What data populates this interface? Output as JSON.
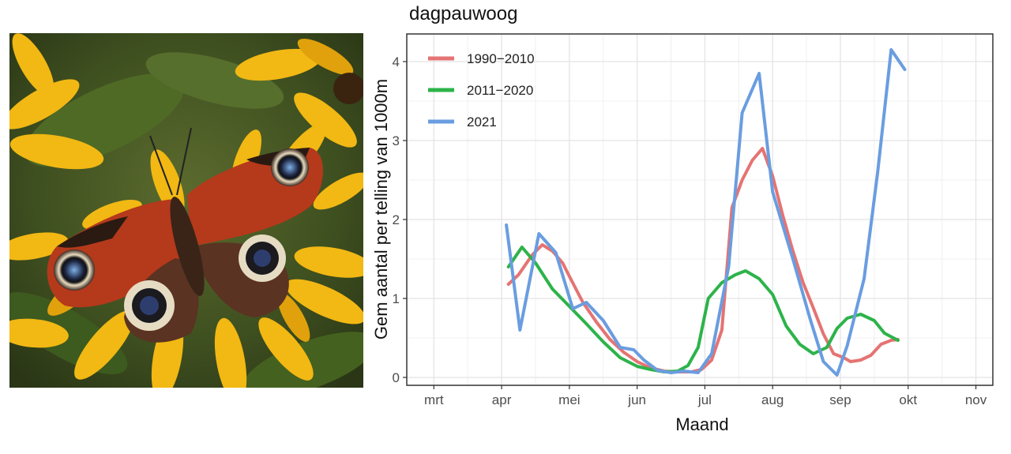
{
  "photo": {
    "icon": "peacock-butterfly-on-yellow-flowers"
  },
  "chart_data": {
    "type": "line",
    "title": "dagpauwoog",
    "xlabel": "Maand",
    "ylabel": "Gem aantal per telling van 1000m",
    "x_ticks": [
      {
        "label": "mrt",
        "value": 3
      },
      {
        "label": "apr",
        "value": 4
      },
      {
        "label": "mei",
        "value": 5
      },
      {
        "label": "jun",
        "value": 6
      },
      {
        "label": "jul",
        "value": 7
      },
      {
        "label": "aug",
        "value": 8
      },
      {
        "label": "sep",
        "value": 9
      },
      {
        "label": "okt",
        "value": 10
      },
      {
        "label": "nov",
        "value": 11
      }
    ],
    "y_ticks": [
      0,
      1,
      2,
      3,
      4
    ],
    "xlim": [
      2.6,
      11.25
    ],
    "ylim": [
      -0.1,
      4.35
    ],
    "grid": true,
    "legend_position": "top-left",
    "series": [
      {
        "name": "1990−2010",
        "color": "#e57373",
        "points": [
          [
            4.1,
            1.18
          ],
          [
            4.25,
            1.3
          ],
          [
            4.45,
            1.55
          ],
          [
            4.6,
            1.68
          ],
          [
            4.75,
            1.6
          ],
          [
            4.9,
            1.45
          ],
          [
            5.0,
            1.28
          ],
          [
            5.2,
            0.95
          ],
          [
            5.4,
            0.7
          ],
          [
            5.6,
            0.48
          ],
          [
            5.8,
            0.32
          ],
          [
            6.0,
            0.2
          ],
          [
            6.2,
            0.12
          ],
          [
            6.4,
            0.08
          ],
          [
            6.6,
            0.07
          ],
          [
            6.8,
            0.07
          ],
          [
            6.95,
            0.1
          ],
          [
            7.1,
            0.22
          ],
          [
            7.25,
            0.6
          ],
          [
            7.4,
            2.15
          ],
          [
            7.55,
            2.5
          ],
          [
            7.7,
            2.75
          ],
          [
            7.85,
            2.9
          ],
          [
            8.0,
            2.55
          ],
          [
            8.15,
            2.05
          ],
          [
            8.3,
            1.6
          ],
          [
            8.45,
            1.2
          ],
          [
            8.6,
            0.88
          ],
          [
            8.75,
            0.55
          ],
          [
            8.9,
            0.3
          ],
          [
            9.05,
            0.25
          ],
          [
            9.15,
            0.2
          ],
          [
            9.3,
            0.22
          ],
          [
            9.45,
            0.28
          ],
          [
            9.6,
            0.42
          ],
          [
            9.75,
            0.47
          ],
          [
            9.85,
            0.48
          ]
        ]
      },
      {
        "name": "2011−2020",
        "color": "#2db34a",
        "points": [
          [
            4.1,
            1.4
          ],
          [
            4.3,
            1.65
          ],
          [
            4.5,
            1.45
          ],
          [
            4.75,
            1.12
          ],
          [
            5.0,
            0.9
          ],
          [
            5.25,
            0.68
          ],
          [
            5.5,
            0.45
          ],
          [
            5.75,
            0.25
          ],
          [
            6.0,
            0.14
          ],
          [
            6.2,
            0.1
          ],
          [
            6.4,
            0.07
          ],
          [
            6.6,
            0.08
          ],
          [
            6.75,
            0.15
          ],
          [
            6.9,
            0.38
          ],
          [
            7.05,
            1.0
          ],
          [
            7.25,
            1.2
          ],
          [
            7.45,
            1.3
          ],
          [
            7.6,
            1.35
          ],
          [
            7.8,
            1.25
          ],
          [
            8.0,
            1.05
          ],
          [
            8.2,
            0.65
          ],
          [
            8.4,
            0.42
          ],
          [
            8.6,
            0.3
          ],
          [
            8.8,
            0.38
          ],
          [
            8.95,
            0.62
          ],
          [
            9.1,
            0.75
          ],
          [
            9.3,
            0.8
          ],
          [
            9.5,
            0.72
          ],
          [
            9.65,
            0.56
          ],
          [
            9.85,
            0.47
          ]
        ]
      },
      {
        "name": "2021",
        "color": "#6a9de0",
        "points": [
          [
            4.07,
            1.93
          ],
          [
            4.27,
            0.6
          ],
          [
            4.55,
            1.82
          ],
          [
            4.8,
            1.58
          ],
          [
            5.05,
            0.87
          ],
          [
            5.25,
            0.95
          ],
          [
            5.5,
            0.72
          ],
          [
            5.75,
            0.38
          ],
          [
            5.95,
            0.35
          ],
          [
            6.1,
            0.22
          ],
          [
            6.3,
            0.09
          ],
          [
            6.5,
            0.06
          ],
          [
            6.7,
            0.08
          ],
          [
            6.9,
            0.06
          ],
          [
            7.1,
            0.3
          ],
          [
            7.35,
            1.4
          ],
          [
            7.55,
            3.35
          ],
          [
            7.8,
            3.85
          ],
          [
            8.0,
            2.35
          ],
          [
            8.3,
            1.5
          ],
          [
            8.55,
            0.75
          ],
          [
            8.75,
            0.2
          ],
          [
            8.95,
            0.03
          ],
          [
            9.1,
            0.4
          ],
          [
            9.35,
            1.25
          ],
          [
            9.55,
            2.6
          ],
          [
            9.75,
            4.15
          ],
          [
            9.95,
            3.9
          ]
        ]
      }
    ]
  }
}
